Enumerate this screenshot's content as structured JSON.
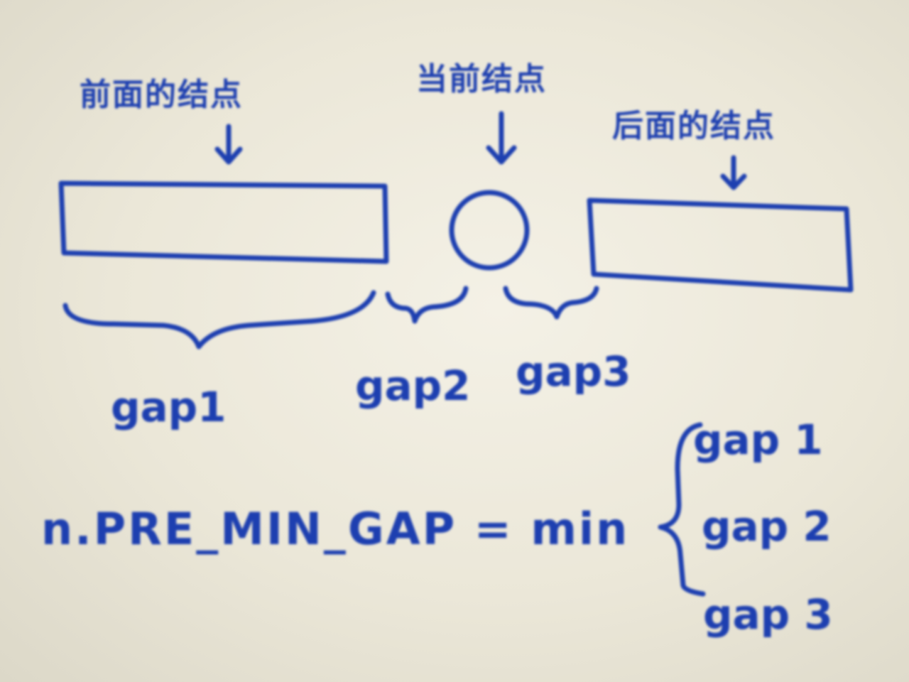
{
  "labels": {
    "prev_node": "前面的结点",
    "current_node": "当前结点",
    "next_node": "后面的结点"
  },
  "gaps": {
    "gap1": "gap1",
    "gap2": "gap2",
    "gap3": "gap3"
  },
  "formula": {
    "lhs": "n.PRE_MIN_GAP = min",
    "options": [
      "gap 1",
      "gap 2",
      "gap 3"
    ]
  },
  "colors": {
    "ink": "#1d3fb0",
    "paper": "#f4f1e6"
  }
}
